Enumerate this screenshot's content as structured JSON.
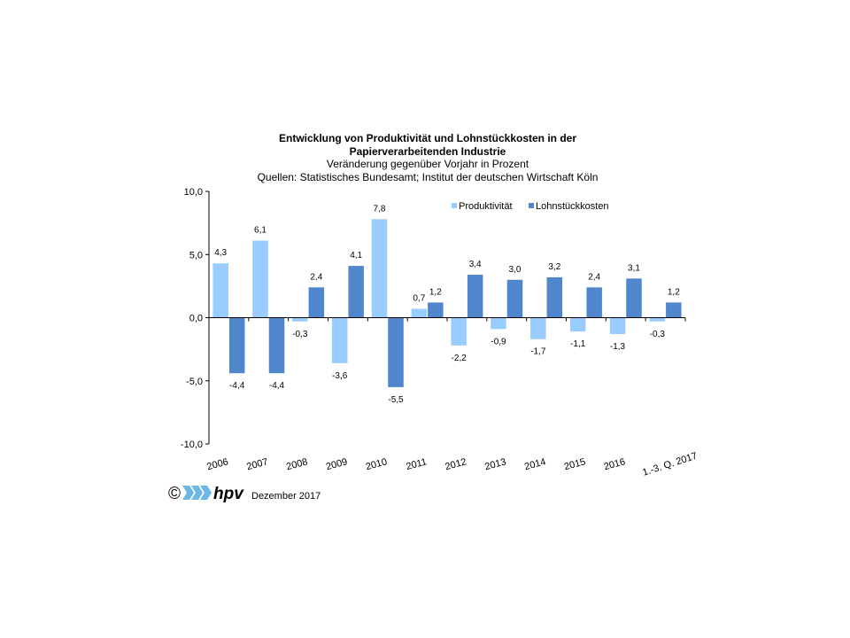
{
  "header": {
    "title_line1": "Entwicklung von Produktivität und Lohnstückkosten  in der",
    "title_line2": "Papierverarbeitenden Industrie",
    "subtitle": "Veränderung  gegenüber  Vorjahr in Prozent",
    "source": "Quellen: Statistisches Bundesamt; Institut der deutschen Wirtschaft Köln"
  },
  "chart_data": {
    "type": "bar",
    "title": "Entwicklung von Produktivität und Lohnstückkosten  in der Papierverarbeitenden Industrie",
    "subtitle": "Veränderung  gegenüber  Vorjahr in Prozent",
    "categories": [
      "2006",
      "2007",
      "2008",
      "2009",
      "2010",
      "2011",
      "2012",
      "2013",
      "2014",
      "2015",
      "2016",
      "1.-3. Q. 2017"
    ],
    "series": [
      {
        "name": "Produktivität",
        "color": "#99ccff",
        "values": [
          4.3,
          6.1,
          -0.3,
          -3.6,
          7.8,
          0.7,
          -2.2,
          -0.9,
          -1.7,
          -1.1,
          -1.3,
          -0.3
        ],
        "labels": [
          "4,3",
          "6,1",
          "-0,3",
          "-3,6",
          "7,8",
          "0,7",
          "-2,2",
          "-0,9",
          "-1,7",
          "-1,1",
          "-1,3",
          "-0,3"
        ]
      },
      {
        "name": "Lohnstückkosten",
        "color": "#4f86cc",
        "values": [
          -4.4,
          -4.4,
          2.4,
          4.1,
          -5.5,
          1.2,
          3.4,
          3.0,
          3.2,
          2.4,
          3.1,
          1.2
        ],
        "labels": [
          "-4,4",
          "-4,4",
          "2,4",
          "4,1",
          "-5,5",
          "1,2",
          "3,4",
          "3,0",
          "3,2",
          "2,4",
          "3,1",
          "1,2"
        ]
      }
    ],
    "ylim": [
      -10,
      10
    ],
    "yticks": [
      -10,
      -5,
      0,
      5,
      10
    ],
    "ytick_labels": [
      "-10,0",
      "-5,0",
      "0,0",
      "5,0",
      "10,0"
    ],
    "xlabel": "",
    "ylabel": "",
    "grid": false,
    "legend": "top-right"
  },
  "footer": {
    "copyright": "©",
    "logo_text": "hpv",
    "date": "Dezember 2017"
  }
}
